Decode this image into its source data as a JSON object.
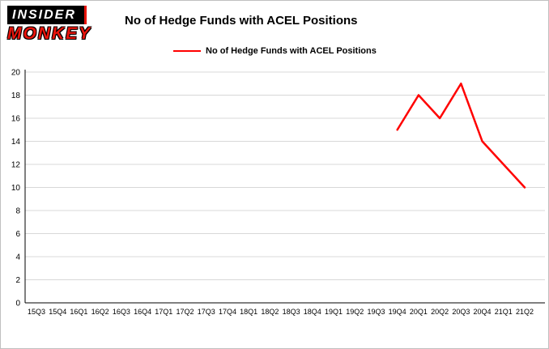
{
  "logo": {
    "line1": "INSIDER",
    "line2": "MONKEY"
  },
  "header": {
    "title": "No of Hedge Funds with ACEL Positions"
  },
  "legend": {
    "label": "No of Hedge Funds with ACEL Positions",
    "color": "#ff0000"
  },
  "colors": {
    "grid": "#d8d8d8",
    "axis": "#000000",
    "line": "#ff0000"
  },
  "chart_data": {
    "type": "line",
    "title": "No of Hedge Funds with ACEL Positions",
    "categories": [
      "15Q3",
      "15Q4",
      "16Q1",
      "16Q2",
      "16Q3",
      "16Q4",
      "17Q1",
      "17Q2",
      "17Q3",
      "17Q4",
      "18Q1",
      "18Q2",
      "18Q3",
      "18Q4",
      "19Q1",
      "19Q2",
      "19Q3",
      "19Q4",
      "20Q1",
      "20Q2",
      "20Q3",
      "20Q4",
      "21Q1",
      "21Q2"
    ],
    "series": [
      {
        "name": "No of Hedge Funds with ACEL Positions",
        "color": "#ff0000",
        "values": [
          null,
          null,
          null,
          null,
          null,
          null,
          null,
          null,
          null,
          null,
          null,
          null,
          null,
          null,
          null,
          null,
          null,
          15,
          18,
          16,
          19,
          14,
          12,
          10
        ]
      }
    ],
    "ylim": [
      0,
      20
    ],
    "ytick_step": 2,
    "grid": true,
    "legend_position": "top"
  }
}
